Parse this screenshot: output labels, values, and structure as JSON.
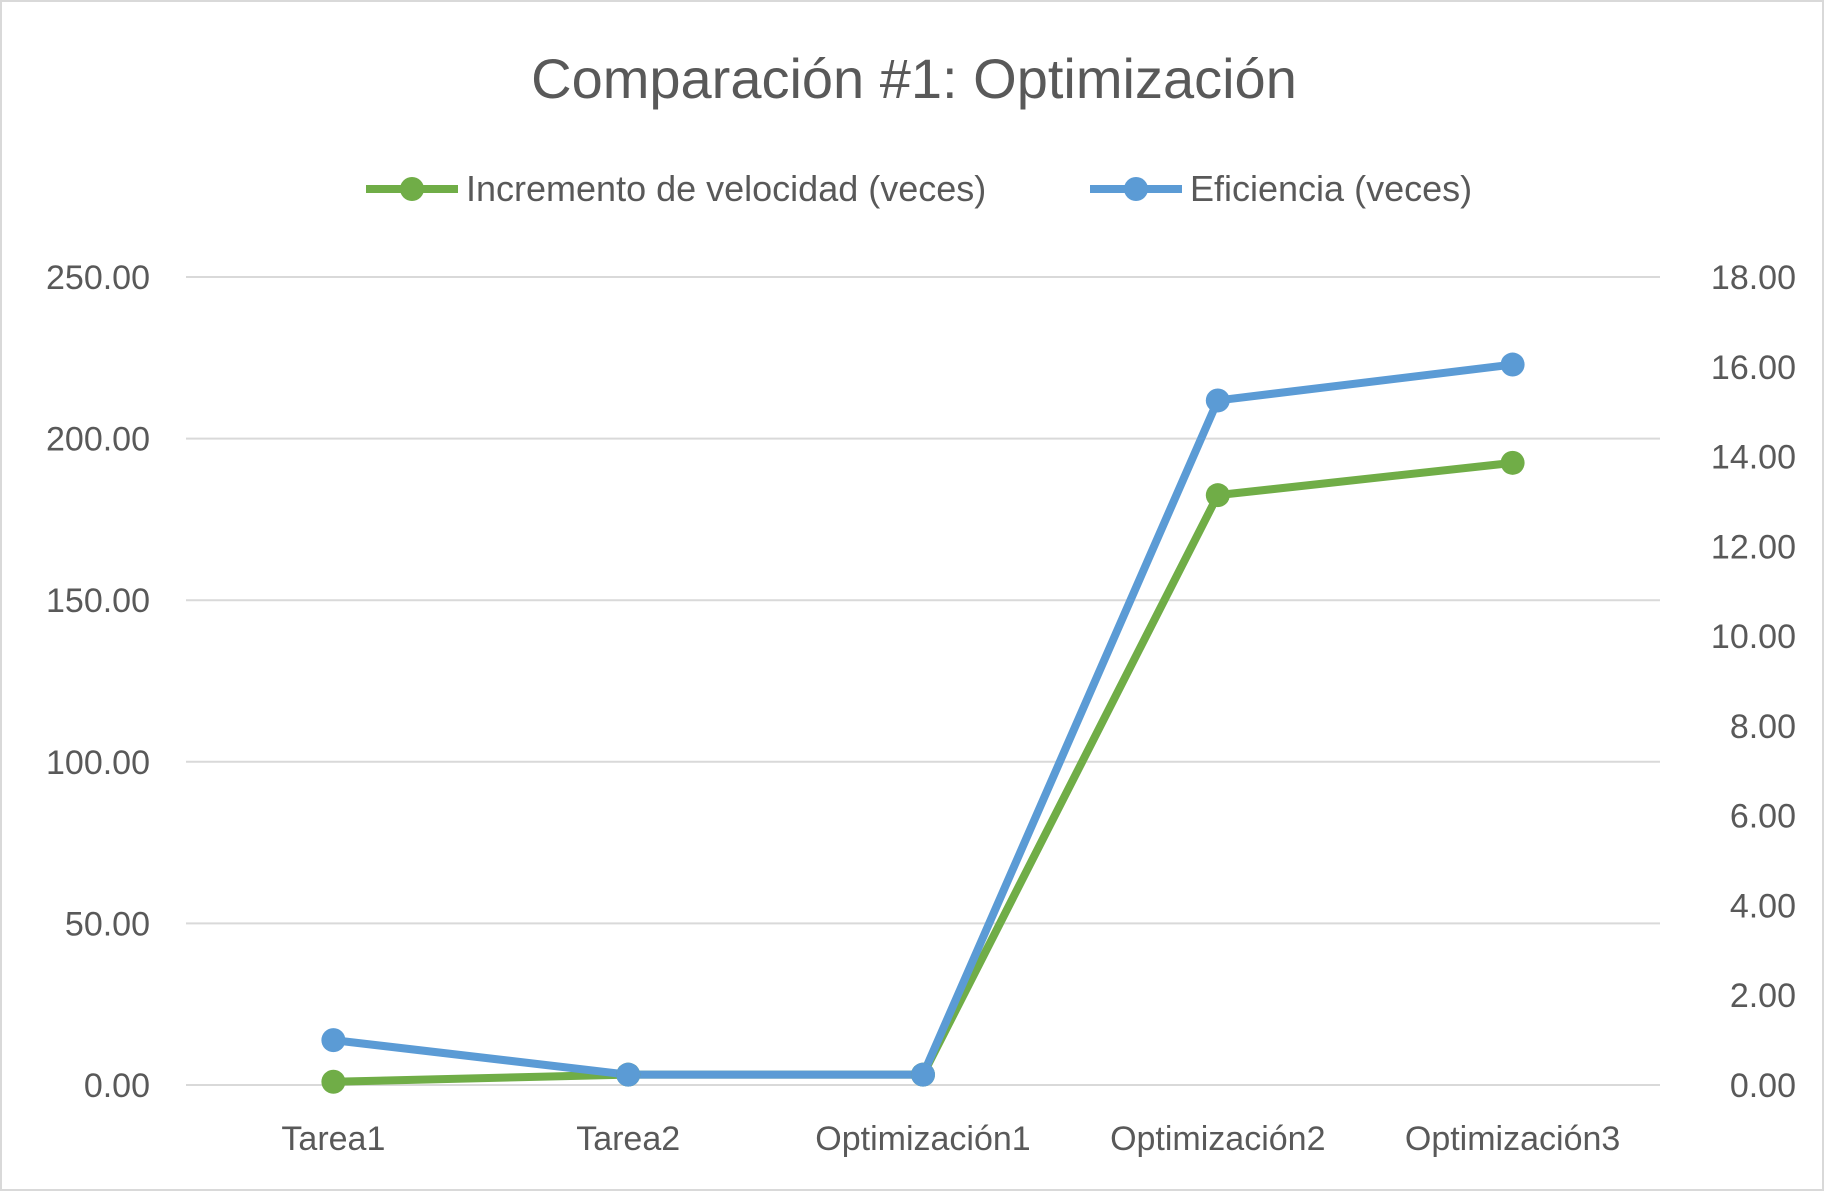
{
  "chart_data": {
    "type": "line",
    "title": "Comparación #1: Optimización",
    "categories": [
      "Tarea1",
      "Tarea2",
      "Optimización1",
      "Optimización2",
      "Optimización3"
    ],
    "series": [
      {
        "name": "Incremento de velocidad (veces)",
        "axis": "left",
        "color": "#70ad47",
        "values": [
          1.0,
          3.2,
          3.2,
          182.5,
          192.5
        ]
      },
      {
        "name": "Eficiencia (veces)",
        "axis": "right",
        "color": "#5b9bd5",
        "values": [
          1.0,
          0.23,
          0.23,
          15.25,
          16.05
        ]
      }
    ],
    "y_left": {
      "range": [
        0,
        250
      ],
      "ticks": [
        "0.00",
        "50.00",
        "100.00",
        "150.00",
        "200.00",
        "250.00"
      ]
    },
    "y_right": {
      "range": [
        0,
        18
      ],
      "ticks": [
        "0.00",
        "2.00",
        "4.00",
        "6.00",
        "8.00",
        "10.00",
        "12.00",
        "14.00",
        "16.00",
        "18.00"
      ]
    },
    "grid": true,
    "legend_position": "top"
  }
}
